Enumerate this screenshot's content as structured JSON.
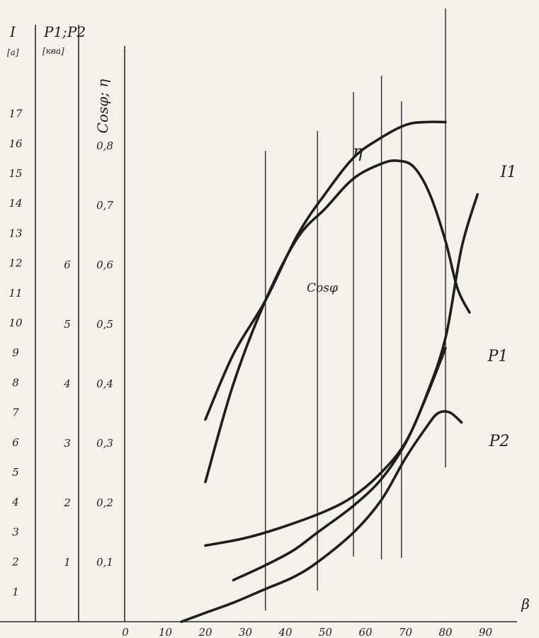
{
  "chart_data": {
    "type": "line",
    "xlabel": "β",
    "x_ticks": [
      "0",
      "10",
      "20",
      "30",
      "40",
      "50",
      "60",
      "70",
      "80",
      "90"
    ],
    "xlim": [
      0,
      90
    ],
    "axes": {
      "current": {
        "label": "I",
        "unit": "[a]",
        "ticks": [
          "1",
          "2",
          "3",
          "4",
          "5",
          "6",
          "7",
          "8",
          "9",
          "10",
          "11",
          "12",
          "13",
          "14",
          "15",
          "16",
          "17"
        ],
        "range": [
          0,
          17
        ]
      },
      "power": {
        "label": "P1;P2",
        "unit": "[ква]",
        "ticks": [
          "1",
          "2",
          "3",
          "4",
          "5",
          "6"
        ],
        "range": [
          0,
          6
        ]
      },
      "cos_eta": {
        "label": "Cosφ; η",
        "ticks": [
          "0,1",
          "0,2",
          "0,3",
          "0,4",
          "0,5",
          "0,6",
          "0,7",
          "0,8"
        ],
        "range": [
          0,
          0.8
        ]
      }
    },
    "measurement_x": [
      35,
      48,
      57,
      64,
      69,
      80
    ],
    "series": [
      {
        "name": "η",
        "axis": "cos_eta",
        "x": [
          20,
          27,
          35,
          43,
          50,
          57,
          63,
          70,
          75,
          80
        ],
        "y": [
          0.34,
          0.45,
          0.54,
          0.65,
          0.72,
          0.78,
          0.81,
          0.835,
          0.84,
          0.84
        ]
      },
      {
        "name": "Cosφ",
        "axis": "cos_eta",
        "x": [
          20,
          27,
          35,
          43,
          50,
          57,
          64,
          68,
          72,
          76,
          80,
          83,
          86
        ],
        "y": [
          0.235,
          0.4,
          0.54,
          0.645,
          0.695,
          0.745,
          0.77,
          0.775,
          0.765,
          0.72,
          0.64,
          0.56,
          0.52
        ]
      },
      {
        "name": "I1",
        "axis": "current",
        "x": [
          20,
          30,
          40,
          50,
          57,
          64,
          70,
          75,
          80,
          84,
          88
        ],
        "y": [
          2.55,
          2.8,
          3.2,
          3.7,
          4.2,
          5.0,
          6.0,
          7.5,
          9.5,
          12.5,
          14.3
        ]
      },
      {
        "name": "P1",
        "axis": "power",
        "x": [
          27,
          35,
          42,
          48,
          57,
          64,
          70,
          75,
          80
        ],
        "y": [
          0.7,
          0.95,
          1.2,
          1.5,
          1.95,
          2.4,
          3.0,
          3.75,
          4.6
        ]
      },
      {
        "name": "P2",
        "axis": "power",
        "x": [
          14,
          20,
          27,
          35,
          42,
          48,
          57,
          64,
          70,
          75,
          78,
          81,
          84
        ],
        "y": [
          0.0,
          0.15,
          0.32,
          0.55,
          0.75,
          1.0,
          1.5,
          2.05,
          2.75,
          3.25,
          3.5,
          3.52,
          3.35
        ]
      }
    ],
    "curve_labels": [
      "η",
      "Cosφ",
      "I1",
      "P1",
      "P2"
    ]
  }
}
